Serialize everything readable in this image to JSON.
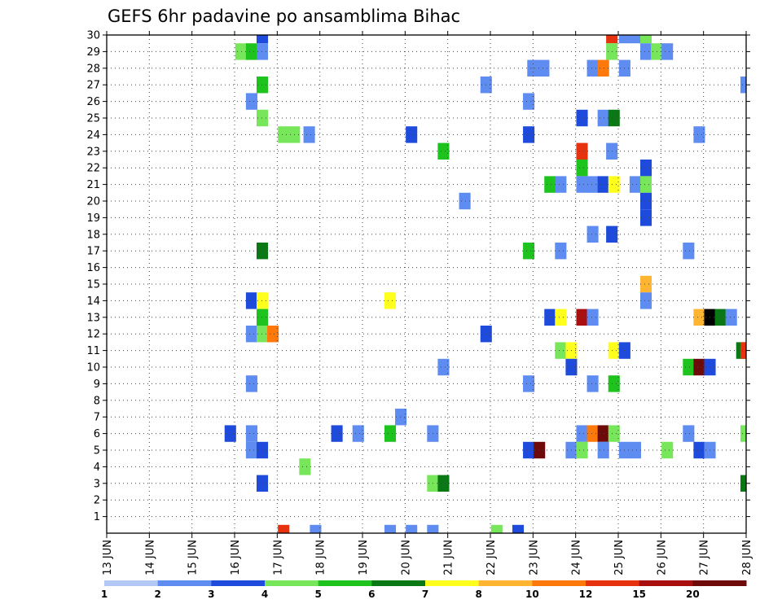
{
  "chart_data": {
    "type": "heatmap",
    "title": "GEFS 6hr padavine po ansamblima Bihac",
    "xlabel": "",
    "ylabel": "",
    "x_tick_labels": [
      "13 JUN",
      "14 JUN",
      "15 JUN",
      "16 JUN",
      "17 JUN",
      "18 JUN",
      "19 JUN",
      "20 JUN",
      "21 JUN",
      "22 JUN",
      "23 JUN",
      "24 JUN",
      "25 JUN",
      "26 JUN",
      "27 JUN",
      "28 JUN"
    ],
    "x_range_days": [
      13,
      28
    ],
    "y_tick_labels": [
      "1",
      "2",
      "3",
      "4",
      "5",
      "6",
      "7",
      "8",
      "9",
      "10",
      "11",
      "12",
      "13",
      "14",
      "15",
      "16",
      "17",
      "18",
      "19",
      "20",
      "21",
      "22",
      "23",
      "24",
      "25",
      "26",
      "27",
      "28",
      "29",
      "30"
    ],
    "ylim": [
      0,
      30
    ],
    "grid": true,
    "colorbar_labels": [
      "1",
      "2",
      "3",
      "4",
      "5",
      "6",
      "7",
      "8",
      "10",
      "12",
      "15",
      "20"
    ],
    "colorbar_colors": [
      "#b4c8f5",
      "#5f8cf0",
      "#1e4bdc",
      "#78e65a",
      "#1ec31e",
      "#0a7814",
      "#ffff1e",
      "#ffb432",
      "#ff780a",
      "#e6320f",
      "#aa0f0f",
      "#6e0a0a"
    ],
    "cells": [
      [
        16.65,
        30,
        2
      ],
      [
        24.85,
        30,
        9
      ],
      [
        25.15,
        30,
        1
      ],
      [
        25.4,
        30,
        1
      ],
      [
        25.65,
        30,
        3
      ],
      [
        16.15,
        29,
        3
      ],
      [
        16.4,
        29,
        4
      ],
      [
        16.65,
        29,
        1
      ],
      [
        24.85,
        29,
        3
      ],
      [
        25.65,
        29,
        1
      ],
      [
        25.9,
        29,
        3
      ],
      [
        26.15,
        29,
        1
      ],
      [
        23.0,
        28,
        1
      ],
      [
        23.25,
        28,
        1
      ],
      [
        24.4,
        28,
        1
      ],
      [
        24.65,
        28,
        8
      ],
      [
        25.15,
        28,
        1
      ],
      [
        16.65,
        27,
        4
      ],
      [
        21.9,
        27,
        1
      ],
      [
        28.0,
        27,
        1
      ],
      [
        16.4,
        26,
        1
      ],
      [
        22.9,
        26,
        1
      ],
      [
        16.65,
        25,
        3
      ],
      [
        24.15,
        25,
        2
      ],
      [
        24.65,
        25,
        1
      ],
      [
        24.9,
        25,
        5
      ],
      [
        17.15,
        24,
        3
      ],
      [
        17.4,
        24,
        3
      ],
      [
        17.75,
        24,
        1
      ],
      [
        20.15,
        24,
        2
      ],
      [
        22.9,
        24,
        2
      ],
      [
        26.9,
        24,
        1
      ],
      [
        20.9,
        23,
        4
      ],
      [
        24.15,
        23,
        9
      ],
      [
        24.85,
        23,
        1
      ],
      [
        24.15,
        22,
        4
      ],
      [
        25.65,
        22,
        2
      ],
      [
        23.4,
        21,
        4
      ],
      [
        23.65,
        21,
        1
      ],
      [
        24.15,
        21,
        1
      ],
      [
        24.4,
        21,
        1
      ],
      [
        24.65,
        21,
        2
      ],
      [
        24.9,
        21,
        6
      ],
      [
        25.4,
        21,
        1
      ],
      [
        25.65,
        21,
        3
      ],
      [
        21.4,
        20,
        1
      ],
      [
        25.65,
        20,
        2
      ],
      [
        25.65,
        19,
        2
      ],
      [
        24.4,
        18,
        1
      ],
      [
        24.85,
        18,
        2
      ],
      [
        16.65,
        17,
        5
      ],
      [
        22.9,
        17,
        4
      ],
      [
        23.65,
        17,
        1
      ],
      [
        26.65,
        17,
        1
      ],
      [
        25.65,
        15,
        7
      ],
      [
        16.4,
        14,
        2
      ],
      [
        16.65,
        14,
        6
      ],
      [
        19.65,
        14,
        6
      ],
      [
        25.65,
        14,
        1
      ],
      [
        16.65,
        13,
        4
      ],
      [
        23.4,
        13,
        2
      ],
      [
        23.65,
        13,
        6
      ],
      [
        24.15,
        13,
        10
      ],
      [
        24.4,
        13,
        1
      ],
      [
        26.9,
        13,
        7
      ],
      [
        27.15,
        13,
        12
      ],
      [
        27.4,
        13,
        5
      ],
      [
        27.65,
        13,
        1
      ],
      [
        16.4,
        12,
        1
      ],
      [
        16.65,
        12,
        3
      ],
      [
        16.9,
        12,
        8
      ],
      [
        21.9,
        12,
        2
      ],
      [
        23.65,
        11,
        3
      ],
      [
        23.9,
        11,
        6
      ],
      [
        24.9,
        11,
        6
      ],
      [
        25.15,
        11,
        2
      ],
      [
        27.9,
        11,
        5
      ],
      [
        28.0,
        11,
        9
      ],
      [
        20.9,
        10,
        1
      ],
      [
        23.9,
        10,
        2
      ],
      [
        26.65,
        10,
        4
      ],
      [
        26.9,
        10,
        11
      ],
      [
        27.15,
        10,
        2
      ],
      [
        16.4,
        9,
        1
      ],
      [
        22.9,
        9,
        1
      ],
      [
        24.4,
        9,
        1
      ],
      [
        24.9,
        9,
        4
      ],
      [
        19.9,
        7,
        1
      ],
      [
        15.9,
        6,
        2
      ],
      [
        16.4,
        6,
        1
      ],
      [
        18.4,
        6,
        2
      ],
      [
        18.9,
        6,
        1
      ],
      [
        19.65,
        6,
        4
      ],
      [
        20.65,
        6,
        1
      ],
      [
        24.15,
        6,
        1
      ],
      [
        24.4,
        6,
        8
      ],
      [
        24.65,
        6,
        11
      ],
      [
        24.9,
        6,
        3
      ],
      [
        26.65,
        6,
        1
      ],
      [
        28.0,
        6,
        3
      ],
      [
        16.4,
        5,
        1
      ],
      [
        16.65,
        5,
        2
      ],
      [
        22.9,
        5,
        2
      ],
      [
        23.15,
        5,
        11
      ],
      [
        23.9,
        5,
        1
      ],
      [
        24.15,
        5,
        3
      ],
      [
        24.65,
        5,
        1
      ],
      [
        25.15,
        5,
        1
      ],
      [
        25.4,
        5,
        1
      ],
      [
        26.15,
        5,
        3
      ],
      [
        26.9,
        5,
        2
      ],
      [
        27.15,
        5,
        1
      ],
      [
        17.65,
        4,
        3
      ],
      [
        16.65,
        3,
        2
      ],
      [
        20.65,
        3,
        3
      ],
      [
        20.9,
        3,
        5
      ],
      [
        28.0,
        3,
        5
      ],
      [
        17.15,
        0,
        9
      ],
      [
        17.9,
        0,
        1
      ],
      [
        19.65,
        0,
        1
      ],
      [
        20.15,
        0,
        1
      ],
      [
        20.65,
        0,
        1
      ],
      [
        22.15,
        0,
        3
      ],
      [
        22.65,
        0,
        2
      ]
    ]
  }
}
